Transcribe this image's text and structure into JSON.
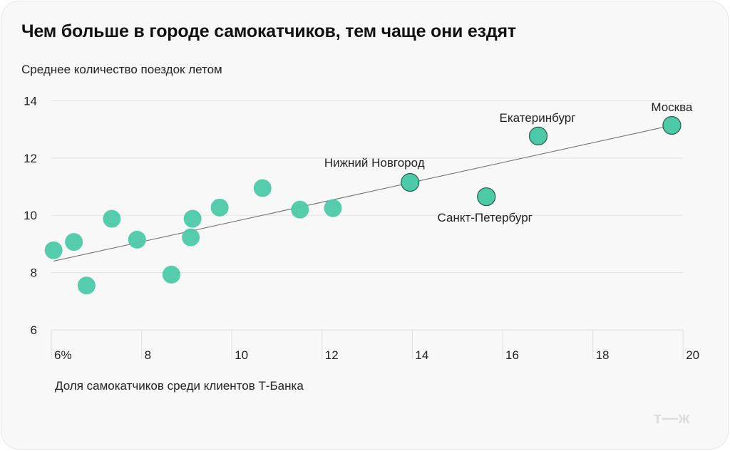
{
  "header": {
    "title": "Чем больше в городе самокатчиков, тем чаще они ездят",
    "y_axis_label": "Среднее количество поездок летом",
    "x_axis_label": "Доля самокатчиков среди клиентов Т-Банка",
    "logo": "т—ж"
  },
  "colors": {
    "point": "#4cc9a6",
    "point_outline": "#2a5a4c",
    "trend": "#666666",
    "grid": "#e3e3e3",
    "background": "#f8f8f8"
  },
  "chart_data": {
    "type": "scatter",
    "title": "Чем больше в городе самокатчиков, тем чаще они ездят",
    "xlabel": "Доля самокатчиков среди клиентов Т-Банка",
    "ylabel": "Среднее количество поездок летом",
    "xlim": [
      6,
      20
    ],
    "ylim": [
      6,
      14
    ],
    "x_ticks": [
      "6%",
      "8",
      "10",
      "12",
      "14",
      "16",
      "18",
      "20"
    ],
    "y_ticks": [
      "6",
      "8",
      "10",
      "12",
      "14"
    ],
    "grid": true,
    "legend": null,
    "points": [
      {
        "x": 6.05,
        "y": 8.78,
        "label": ""
      },
      {
        "x": 6.5,
        "y": 9.07,
        "label": ""
      },
      {
        "x": 6.78,
        "y": 7.55,
        "label": ""
      },
      {
        "x": 7.34,
        "y": 9.88,
        "label": ""
      },
      {
        "x": 7.9,
        "y": 9.15,
        "label": ""
      },
      {
        "x": 8.66,
        "y": 7.93,
        "label": ""
      },
      {
        "x": 9.09,
        "y": 9.23,
        "label": ""
      },
      {
        "x": 9.13,
        "y": 9.88,
        "label": ""
      },
      {
        "x": 9.73,
        "y": 10.27,
        "label": ""
      },
      {
        "x": 10.68,
        "y": 10.95,
        "label": ""
      },
      {
        "x": 11.51,
        "y": 10.2,
        "label": ""
      },
      {
        "x": 12.24,
        "y": 10.25,
        "label": ""
      },
      {
        "x": 13.95,
        "y": 11.15,
        "label": "Нижний Новгород"
      },
      {
        "x": 15.64,
        "y": 10.65,
        "label": "Санкт-Петербург"
      },
      {
        "x": 16.79,
        "y": 12.77,
        "label": "Екатеринбург"
      },
      {
        "x": 19.75,
        "y": 13.14,
        "label": "Москва"
      }
    ],
    "trend_line": {
      "x0": 6.05,
      "y0": 8.4,
      "x1": 19.75,
      "y1": 13.14
    }
  }
}
